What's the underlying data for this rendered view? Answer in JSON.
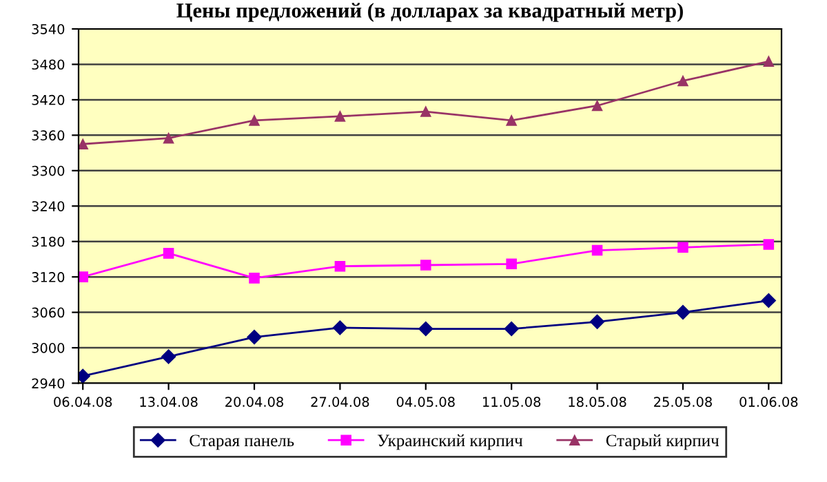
{
  "chart_data": {
    "type": "line",
    "title": "Цены предложений (в долларах за квадратный метр)",
    "categories": [
      "06.04.08",
      "13.04.08",
      "20.04.08",
      "27.04.08",
      "04.05.08",
      "11.05.08",
      "18.05.08",
      "25.05.08",
      "01.06.08"
    ],
    "series": [
      {
        "name": "Старая панель",
        "color": "#000080",
        "marker": "diamond",
        "values": [
          2952,
          2985,
          3018,
          3034,
          3032,
          3032,
          3044,
          3060,
          3080
        ]
      },
      {
        "name": "Украинский кирпич",
        "color": "#ff00ff",
        "marker": "square",
        "values": [
          3120,
          3160,
          3118,
          3138,
          3140,
          3142,
          3165,
          3170,
          3175
        ]
      },
      {
        "name": "Старый кирпич",
        "color": "#993366",
        "marker": "triangle",
        "values": [
          3345,
          3355,
          3385,
          3392,
          3400,
          3385,
          3410,
          3452,
          3485
        ]
      }
    ],
    "ylim": [
      2940,
      3540
    ],
    "yticks": [
      2940,
      3000,
      3060,
      3120,
      3180,
      3240,
      3300,
      3360,
      3420,
      3480,
      3540
    ],
    "grid": "y",
    "legend": "bottom",
    "line_style": "solid"
  }
}
